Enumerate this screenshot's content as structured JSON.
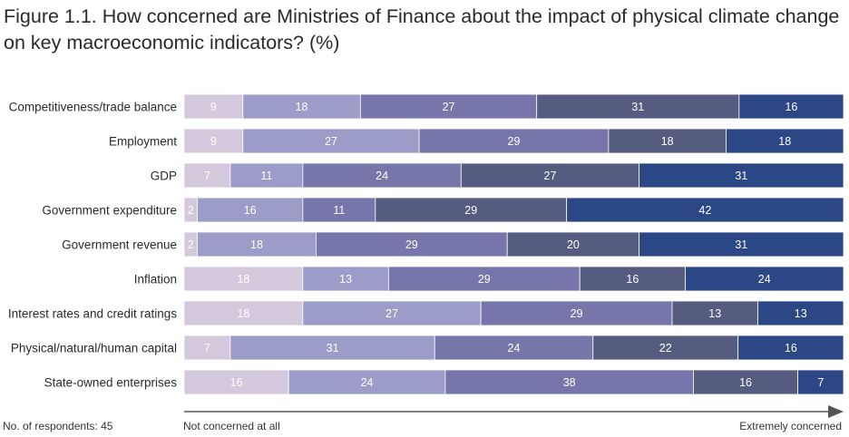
{
  "title": "Figure 1.1. How concerned are Ministries of Finance about the impact of physical climate change on key macroeconomic indicators? (%)",
  "footer": {
    "respondents": "No. of respondents: 45",
    "axis_left": "Not concerned at all",
    "axis_right": "Extremely concerned"
  },
  "colors": [
    "#d4c8dc",
    "#9c9cc8",
    "#7676aa",
    "#555c80",
    "#2c4785"
  ],
  "chart_data": {
    "type": "bar",
    "orientation": "horizontal",
    "stacked": true,
    "categories": [
      "Competitiveness/trade balance",
      "Employment",
      "GDP",
      "Government expenditure",
      "Government revenue",
      "Inflation",
      "Interest rates and credit ratings",
      "Physical/natural/human capital",
      "State-owned enterprises"
    ],
    "values": [
      [
        9,
        18,
        27,
        31,
        16
      ],
      [
        9,
        27,
        29,
        18,
        18
      ],
      [
        7,
        11,
        24,
        27,
        31
      ],
      [
        2,
        16,
        11,
        29,
        42
      ],
      [
        2,
        18,
        29,
        20,
        31
      ],
      [
        18,
        13,
        29,
        16,
        24
      ],
      [
        18,
        27,
        29,
        13,
        13
      ],
      [
        7,
        31,
        24,
        22,
        16
      ],
      [
        16,
        24,
        38,
        16,
        7
      ]
    ],
    "xlim": [
      0,
      100
    ],
    "legend": "none"
  }
}
